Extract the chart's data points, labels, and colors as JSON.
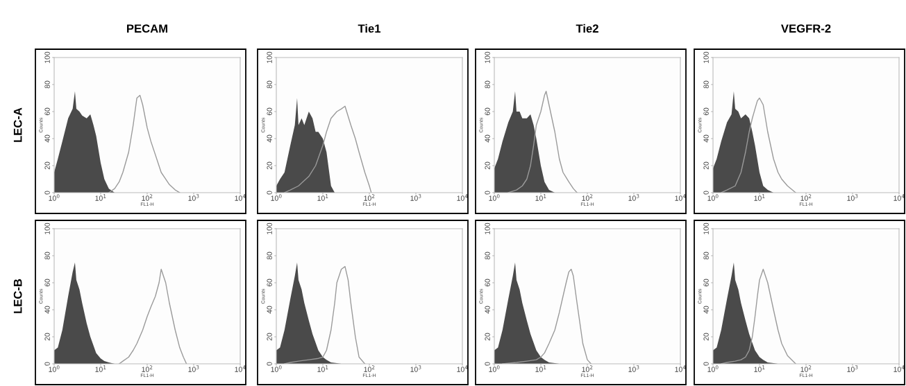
{
  "chart_data": [
    {
      "type": "area",
      "title": "PECAM",
      "annotations": [
        "LEC-A"
      ],
      "xlabel": "FL1-H",
      "ylabel": "Counts",
      "log": "x",
      "xlim": [
        1,
        10000
      ],
      "xticks": [
        {
          "value": 1,
          "label": "10$^{0}$"
        },
        {
          "value": 10,
          "label": "10$^{1}$"
        },
        {
          "value": 100,
          "label": "10$^{2}$"
        },
        {
          "value": 1000,
          "label": "10$^{3}$"
        },
        {
          "value": 10000,
          "label": "10$^{4}$"
        }
      ],
      "ylim": [
        0,
        100
      ],
      "yticks": [
        0,
        20,
        40,
        60,
        80,
        100
      ],
      "series": [
        {
          "color": "#4a4a4a",
          "x": [
            1,
            1.2,
            1.5,
            2,
            2.5,
            2.8,
            3,
            3.5,
            4,
            5,
            6,
            7,
            8,
            10,
            12,
            15,
            20
          ],
          "values": [
            15,
            25,
            38,
            55,
            62,
            75,
            62,
            60,
            57,
            55,
            58,
            50,
            42,
            22,
            10,
            3,
            0
          ]
        },
        {
          "type": "line",
          "color": "#9a9a9a",
          "x": [
            15,
            20,
            25,
            30,
            40,
            50,
            60,
            70,
            80,
            100,
            120,
            150,
            200,
            300,
            400,
            500
          ],
          "values": [
            0,
            3,
            8,
            15,
            30,
            50,
            70,
            72,
            65,
            48,
            38,
            28,
            15,
            6,
            2,
            0
          ]
        }
      ]
    },
    {
      "type": "area",
      "title": "Tie1",
      "xlabel": "FL1-H",
      "ylabel": "Counts",
      "log": "x",
      "xlim": [
        1,
        10000
      ],
      "xticks": [
        {
          "value": 1,
          "label": "10$^{0}$"
        },
        {
          "value": 10,
          "label": "10$^{1}$"
        },
        {
          "value": 100,
          "label": "10$^{2}$"
        },
        {
          "value": 1000,
          "label": "10$^{3}$"
        },
        {
          "value": 10000,
          "label": "10$^{4}$"
        }
      ],
      "ylim": [
        0,
        100
      ],
      "yticks": [
        0,
        20,
        40,
        60,
        80,
        100
      ],
      "series": [
        {
          "color": "#4a4a4a",
          "x": [
            1,
            1.2,
            1.5,
            2,
            2.5,
            2.8,
            3,
            3.5,
            4,
            5,
            6,
            7,
            8,
            10,
            12,
            15,
            18
          ],
          "values": [
            5,
            10,
            15,
            35,
            50,
            70,
            50,
            55,
            50,
            60,
            55,
            45,
            45,
            40,
            30,
            5,
            0
          ]
        },
        {
          "type": "line",
          "color": "#9a9a9a",
          "x": [
            1.5,
            2,
            3,
            5,
            7,
            10,
            12,
            15,
            20,
            25,
            30,
            40,
            50,
            60,
            80,
            100,
            110
          ],
          "values": [
            0,
            2,
            5,
            12,
            20,
            35,
            45,
            55,
            60,
            62,
            64,
            50,
            40,
            30,
            15,
            5,
            0
          ]
        }
      ]
    },
    {
      "type": "area",
      "title": "Tie2",
      "xlabel": "FL1-H",
      "ylabel": "Counts",
      "log": "x",
      "xlim": [
        1,
        10000
      ],
      "xticks": [
        {
          "value": 1,
          "label": "10$^{0}$"
        },
        {
          "value": 10,
          "label": "10$^{1}$"
        },
        {
          "value": 100,
          "label": "10$^{2}$"
        },
        {
          "value": 1000,
          "label": "10$^{3}$"
        },
        {
          "value": 10000,
          "label": "10$^{4}$"
        }
      ],
      "ylim": [
        0,
        100
      ],
      "yticks": [
        0,
        20,
        40,
        60,
        80,
        100
      ],
      "series": [
        {
          "color": "#4a4a4a",
          "x": [
            1,
            1.2,
            1.5,
            2,
            2.5,
            2.8,
            3,
            3.5,
            4,
            5,
            6,
            7,
            8,
            10,
            12,
            15,
            20
          ],
          "values": [
            18,
            25,
            38,
            52,
            60,
            75,
            60,
            60,
            55,
            55,
            58,
            50,
            40,
            20,
            8,
            2,
            0
          ]
        },
        {
          "type": "line",
          "color": "#9a9a9a",
          "x": [
            2,
            3,
            4,
            5,
            6,
            7,
            8,
            10,
            12,
            13,
            15,
            20,
            25,
            30,
            40,
            50,
            60
          ],
          "values": [
            0,
            2,
            5,
            10,
            20,
            35,
            50,
            60,
            72,
            75,
            65,
            45,
            25,
            15,
            8,
            3,
            0
          ]
        }
      ]
    },
    {
      "type": "area",
      "title": "VEGFR-2",
      "xlabel": "FL1-H",
      "ylabel": "Counts",
      "log": "x",
      "xlim": [
        1,
        10000
      ],
      "xticks": [
        {
          "value": 1,
          "label": "10$^{0}$"
        },
        {
          "value": 10,
          "label": "10$^{1}$"
        },
        {
          "value": 100,
          "label": "10$^{2}$"
        },
        {
          "value": 1000,
          "label": "10$^{3}$"
        },
        {
          "value": 10000,
          "label": "10$^{4}$"
        }
      ],
      "ylim": [
        0,
        100
      ],
      "yticks": [
        0,
        20,
        40,
        60,
        80,
        100
      ],
      "series": [
        {
          "color": "#4a4a4a",
          "x": [
            1,
            1.2,
            1.5,
            2,
            2.5,
            2.8,
            3,
            3.5,
            4,
            5,
            6,
            7,
            8,
            10,
            12,
            15,
            20
          ],
          "values": [
            18,
            25,
            38,
            52,
            58,
            75,
            62,
            60,
            55,
            58,
            55,
            45,
            35,
            15,
            5,
            2,
            0
          ]
        },
        {
          "type": "line",
          "color": "#9a9a9a",
          "x": [
            1.5,
            2,
            3,
            4,
            5,
            6,
            7,
            8,
            9,
            10,
            12,
            15,
            20,
            25,
            30,
            40,
            60
          ],
          "values": [
            0,
            2,
            5,
            15,
            30,
            45,
            55,
            62,
            68,
            70,
            65,
            45,
            25,
            15,
            10,
            5,
            0
          ]
        }
      ]
    },
    {
      "type": "area",
      "annotations": [
        "LEC-B"
      ],
      "xlabel": "FL1-H",
      "ylabel": "Counts",
      "log": "x",
      "xlim": [
        1,
        10000
      ],
      "xticks": [
        {
          "value": 1,
          "label": "10$^{0}$"
        },
        {
          "value": 10,
          "label": "10$^{1}$"
        },
        {
          "value": 100,
          "label": "10$^{2}$"
        },
        {
          "value": 1000,
          "label": "10$^{3}$"
        },
        {
          "value": 10000,
          "label": "10$^{4}$"
        }
      ],
      "ylim": [
        0,
        100
      ],
      "yticks": [
        0,
        20,
        40,
        60,
        80,
        100
      ],
      "series": [
        {
          "color": "#4a4a4a",
          "x": [
            1,
            1.2,
            1.5,
            2,
            2.5,
            2.8,
            3,
            3.5,
            4,
            5,
            6,
            8,
            10,
            12,
            15,
            20
          ],
          "values": [
            10,
            12,
            25,
            50,
            68,
            75,
            62,
            55,
            45,
            30,
            20,
            8,
            4,
            2,
            1,
            0
          ]
        },
        {
          "type": "line",
          "color": "#9a9a9a",
          "x": [
            25,
            30,
            40,
            50,
            60,
            80,
            100,
            120,
            150,
            180,
            200,
            250,
            300,
            400,
            500,
            600,
            700
          ],
          "values": [
            0,
            2,
            5,
            10,
            15,
            25,
            35,
            42,
            50,
            60,
            70,
            60,
            45,
            25,
            12,
            5,
            0
          ]
        }
      ]
    },
    {
      "type": "area",
      "xlabel": "FL1-H",
      "ylabel": "Counts",
      "log": "x",
      "xlim": [
        1,
        10000
      ],
      "xticks": [
        {
          "value": 1,
          "label": "10$^{0}$"
        },
        {
          "value": 10,
          "label": "10$^{1}$"
        },
        {
          "value": 100,
          "label": "10$^{2}$"
        },
        {
          "value": 1000,
          "label": "10$^{3}$"
        },
        {
          "value": 10000,
          "label": "10$^{4}$"
        }
      ],
      "ylim": [
        0,
        100
      ],
      "yticks": [
        0,
        20,
        40,
        60,
        80,
        100
      ],
      "series": [
        {
          "color": "#4a4a4a",
          "x": [
            1,
            1.2,
            1.5,
            2,
            2.5,
            2.8,
            3,
            3.5,
            4,
            5,
            6,
            8,
            10,
            12,
            15,
            20,
            25
          ],
          "values": [
            10,
            12,
            25,
            48,
            65,
            75,
            62,
            55,
            45,
            32,
            22,
            10,
            5,
            3,
            1,
            0.5,
            0
          ]
        },
        {
          "type": "line",
          "color": "#9a9a9a",
          "x": [
            1.5,
            2,
            3,
            5,
            8,
            10,
            12,
            15,
            18,
            20,
            25,
            30,
            35,
            40,
            50,
            60,
            80
          ],
          "values": [
            0,
            1,
            2,
            3,
            4,
            5,
            10,
            25,
            45,
            60,
            70,
            72,
            62,
            45,
            20,
            5,
            0
          ]
        }
      ]
    },
    {
      "type": "area",
      "xlabel": "FL1-H",
      "ylabel": "Counts",
      "log": "x",
      "xlim": [
        1,
        10000
      ],
      "xticks": [
        {
          "value": 1,
          "label": "10$^{0}$"
        },
        {
          "value": 10,
          "label": "10$^{1}$"
        },
        {
          "value": 100,
          "label": "10$^{2}$"
        },
        {
          "value": 1000,
          "label": "10$^{3}$"
        },
        {
          "value": 10000,
          "label": "10$^{4}$"
        }
      ],
      "ylim": [
        0,
        100
      ],
      "yticks": [
        0,
        20,
        40,
        60,
        80,
        100
      ],
      "series": [
        {
          "color": "#4a4a4a",
          "x": [
            1,
            1.2,
            1.5,
            2,
            2.5,
            2.8,
            3,
            3.5,
            4,
            5,
            6,
            8,
            10,
            12,
            15,
            20,
            25
          ],
          "values": [
            10,
            12,
            25,
            48,
            65,
            75,
            62,
            55,
            45,
            32,
            22,
            10,
            5,
            3,
            1,
            0.5,
            0
          ]
        },
        {
          "type": "line",
          "color": "#9a9a9a",
          "x": [
            1.5,
            3,
            5,
            8,
            10,
            12,
            15,
            20,
            25,
            30,
            35,
            40,
            45,
            50,
            60,
            80,
            100,
            120
          ],
          "values": [
            0,
            1,
            2,
            3,
            5,
            8,
            15,
            25,
            38,
            50,
            60,
            68,
            70,
            65,
            45,
            15,
            3,
            0
          ]
        }
      ]
    },
    {
      "type": "area",
      "xlabel": "FL1-H",
      "ylabel": "Counts",
      "log": "x",
      "xlim": [
        1,
        10000
      ],
      "xticks": [
        {
          "value": 1,
          "label": "10$^{0}$"
        },
        {
          "value": 10,
          "label": "10$^{1}$"
        },
        {
          "value": 100,
          "label": "10$^{2}$"
        },
        {
          "value": 1000,
          "label": "10$^{3}$"
        },
        {
          "value": 10000,
          "label": "10$^{4}$"
        }
      ],
      "ylim": [
        0,
        100
      ],
      "yticks": [
        0,
        20,
        40,
        60,
        80,
        100
      ],
      "series": [
        {
          "color": "#4a4a4a",
          "x": [
            1,
            1.2,
            1.5,
            2,
            2.5,
            2.8,
            3,
            3.5,
            4,
            5,
            6,
            8,
            10,
            12,
            15,
            20,
            25
          ],
          "values": [
            10,
            12,
            25,
            48,
            65,
            75,
            62,
            55,
            45,
            32,
            22,
            10,
            5,
            3,
            1,
            0.5,
            0
          ]
        },
        {
          "type": "line",
          "color": "#9a9a9a",
          "x": [
            1.5,
            2,
            3,
            4,
            5,
            6,
            7,
            8,
            9,
            10,
            12,
            15,
            20,
            25,
            30,
            40,
            60
          ],
          "values": [
            0,
            1,
            2,
            3,
            5,
            10,
            20,
            35,
            50,
            62,
            70,
            60,
            40,
            25,
            15,
            6,
            0
          ]
        }
      ]
    }
  ]
}
